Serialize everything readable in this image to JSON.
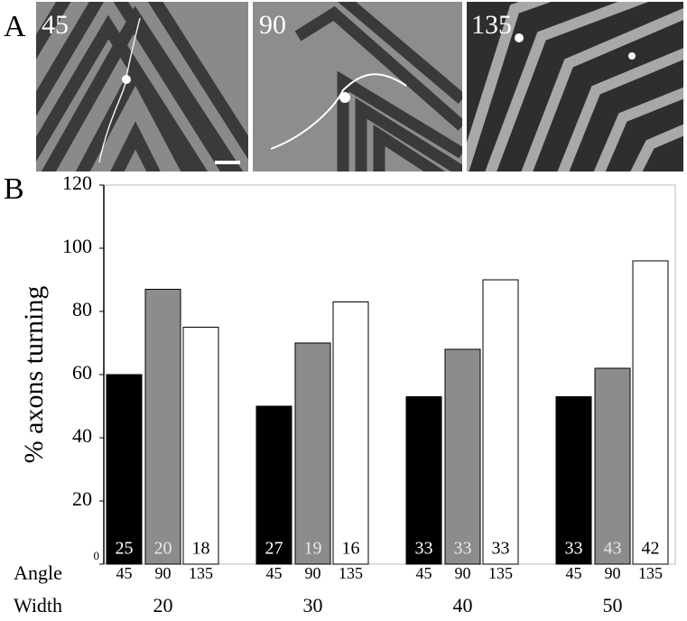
{
  "panel_a": {
    "label": "A",
    "images": [
      "45",
      "90",
      "135"
    ]
  },
  "chart_data": {
    "type": "bar",
    "panel_label": "B",
    "ylabel": "% axons turning",
    "ylim": [
      0,
      120
    ],
    "yticks": [
      0,
      20,
      40,
      60,
      80,
      100,
      120
    ],
    "angle_label": "Angle",
    "width_label": "Width",
    "categories": [
      "20",
      "30",
      "40",
      "50"
    ],
    "series": [
      {
        "name": "45",
        "color": "#000000",
        "text_color": "#ffffff",
        "values": [
          60,
          50,
          53,
          53
        ],
        "n": [
          "25",
          "27",
          "33",
          "33"
        ]
      },
      {
        "name": "90",
        "color": "#8c8c8c",
        "text_color": "#e8e8e8",
        "values": [
          87,
          70,
          68,
          62
        ],
        "n": [
          "20",
          "19",
          "33",
          "43"
        ]
      },
      {
        "name": "135",
        "color": "#ffffff",
        "text_color": "#000000",
        "values": [
          75,
          83,
          90,
          96
        ],
        "n": [
          "18",
          "16",
          "33",
          "42"
        ]
      }
    ]
  }
}
